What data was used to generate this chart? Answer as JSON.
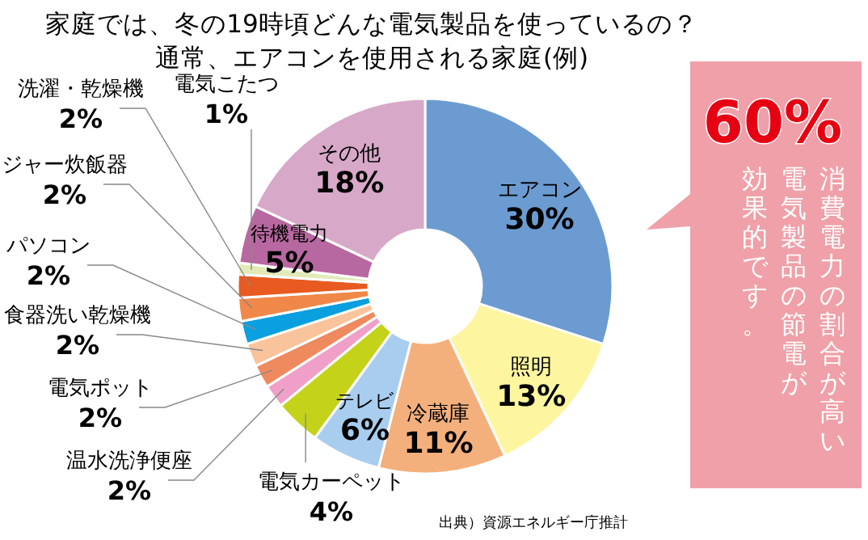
{
  "chart_data": {
    "type": "donut",
    "title": "家庭では、冬の19時頃どんな電気製品を使っているの？",
    "subtitle": "通常、エアコンを使用される家庭(例)",
    "categories": [
      "エアコン",
      "照明",
      "冷蔵庫",
      "テレビ",
      "電気カーペット",
      "温水洗浄便座",
      "電気ポット",
      "食器洗い乾燥機",
      "パソコン",
      "ジャー炊飯器",
      "洗濯・乾燥機",
      "電気こたつ",
      "待機電力",
      "その他"
    ],
    "values": [
      30,
      13,
      11,
      6,
      4,
      2,
      2,
      2,
      2,
      2,
      2,
      1,
      5,
      18
    ],
    "value_labels": [
      "30%",
      "13%",
      "11%",
      "6%",
      "4%",
      "2%",
      "2%",
      "2%",
      "2%",
      "2%",
      "2%",
      "1%",
      "5%",
      "18%"
    ],
    "colors": [
      "#6b9bd1",
      "#fdf5a0",
      "#f4b07c",
      "#a8cdef",
      "#c4d31a",
      "#f0a0c8",
      "#ef8a5e",
      "#f9c49b",
      "#0aa0e0",
      "#f0884a",
      "#e85a20",
      "#e2eab8",
      "#b868a0",
      "#d8a8c8"
    ],
    "annotations": [
      "60%",
      "消費電力の割合が高い",
      "電気製品の節電が",
      "効果的です。",
      "出典）資源エネルギー庁推計"
    ]
  }
}
